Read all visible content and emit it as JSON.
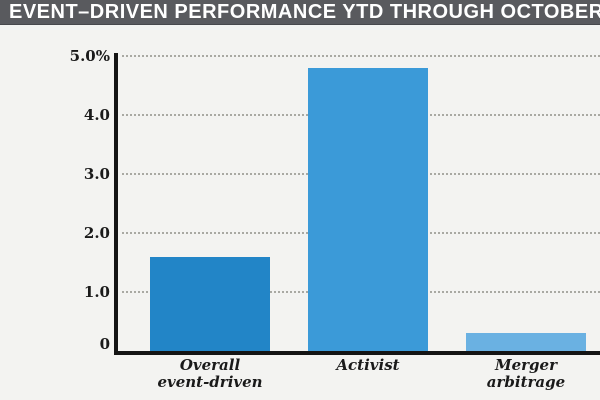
{
  "title_bar": {
    "text": "EVENT–DRIVEN PERFORMANCE YTD THROUGH OCTOBER",
    "bg_color": "#595a5e",
    "text_color": "#ffffff"
  },
  "colors": {
    "background": "#f3f3f1",
    "axis": "#141414",
    "grid": "#a9a9a3",
    "label": "#1a1a1a"
  },
  "chart_data": {
    "type": "bar",
    "title": "EVENT–DRIVEN PERFORMANCE YTD THROUGH OCTOBER",
    "categories": [
      "Overall\nevent-driven",
      "Activist",
      "Merger\narbitrage"
    ],
    "values": [
      1.6,
      4.8,
      0.3
    ],
    "unit": "%",
    "bar_colors": [
      "#2285c7",
      "#3b9ad8",
      "#6ab1e2"
    ],
    "ylim": [
      0,
      5
    ],
    "yticks": [
      {
        "value": 0,
        "label": "0"
      },
      {
        "value": 1,
        "label": "1.0"
      },
      {
        "value": 2,
        "label": "2.0"
      },
      {
        "value": 3,
        "label": "3.0"
      },
      {
        "value": 4,
        "label": "4.0"
      },
      {
        "value": 5,
        "label": "5.0%"
      }
    ],
    "grid": "horizontal-dotted",
    "legend": null,
    "xlabel": "",
    "ylabel": ""
  }
}
